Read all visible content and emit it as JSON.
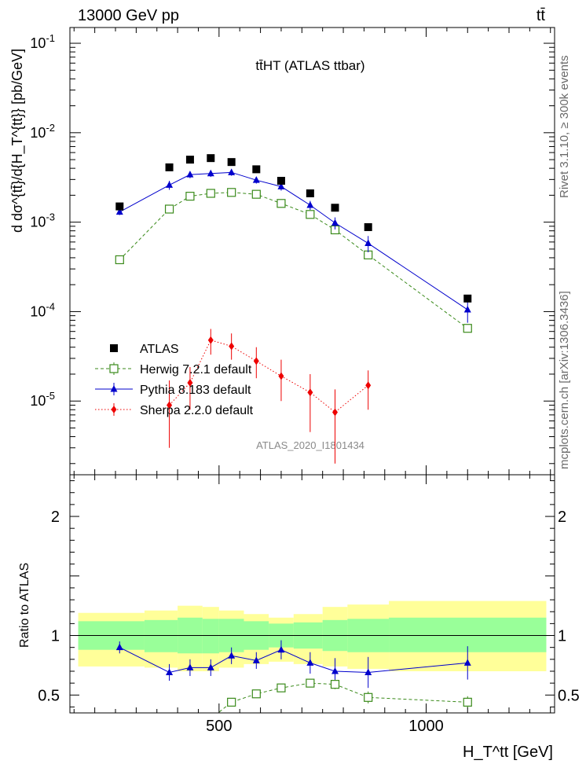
{
  "header": {
    "energy": "13000 GeV pp",
    "process": "tt̄"
  },
  "sidebar": {
    "rivet": "Rivet 3.1.10, ≥ 300k events",
    "mcplots": "mcplots.cern.ch [arXiv:1306.3436]"
  },
  "chart_data": [
    {
      "id": "main",
      "type": "scatter",
      "title": "tt̄HT (ATLAS ttbar)",
      "watermark": "ATLAS_2020_I1801434",
      "ylabel": "d dσ^{tt̄}/d{H_T^{tt}} [pb/GeV]",
      "yscale": "log",
      "ylim": [
        1.5e-06,
        0.15
      ],
      "xlim": [
        140,
        1310
      ],
      "ytick_labels": [
        "10^-5",
        "10^-4",
        "10^-3",
        "10^-2",
        "10^-1"
      ],
      "legend_position": "lower-left",
      "series": [
        {
          "name": "ATLAS",
          "marker": "filled-square",
          "color": "#000000",
          "x": [
            260,
            380,
            430,
            480,
            530,
            590,
            650,
            720,
            780,
            860,
            1100
          ],
          "y": [
            0.0015,
            0.0041,
            0.005,
            0.0052,
            0.0047,
            0.0039,
            0.0029,
            0.0021,
            0.00145,
            0.00088,
            0.00014
          ]
        },
        {
          "name": "Herwig 7.2.1 default",
          "marker": "open-square",
          "line": "dashed",
          "color": "#3a8a1a",
          "x": [
            260,
            380,
            430,
            480,
            530,
            590,
            650,
            720,
            780,
            860,
            1100
          ],
          "y": [
            0.00038,
            0.0014,
            0.00195,
            0.0021,
            0.00215,
            0.00205,
            0.00162,
            0.00122,
            0.00082,
            0.00043,
            6.5e-05
          ]
        },
        {
          "name": "Pythia 8.183 default",
          "marker": "filled-triangle",
          "line": "solid",
          "color": "#0000cc",
          "x": [
            260,
            380,
            430,
            480,
            530,
            590,
            650,
            720,
            780,
            860,
            1100
          ],
          "y": [
            0.0013,
            0.0026,
            0.0034,
            0.0035,
            0.0036,
            0.00295,
            0.0025,
            0.00155,
            0.00098,
            0.00058,
            0.000105
          ],
          "err": [
            0.0001,
            0.0003,
            0.0003,
            0.0003,
            0.0003,
            0.00025,
            0.00025,
            0.00018,
            0.00015,
            0.00012,
            3e-05
          ]
        },
        {
          "name": "Sherpa 2.2.0 default",
          "marker": "filled-diamond",
          "line": "dotted",
          "color": "#ee0000",
          "x": [
            380,
            430,
            480,
            530,
            590,
            650,
            720,
            780,
            860
          ],
          "y": [
            9e-06,
            1.6e-05,
            4.8e-05,
            4.1e-05,
            2.8e-05,
            1.9e-05,
            1.25e-05,
            7.5e-06,
            1.5e-05
          ],
          "err_lo": [
            6e-06,
            8e-06,
            1.5e-05,
            1.2e-05,
            1e-05,
            9e-06,
            8e-06,
            5.5e-06,
            7e-06
          ],
          "err_hi": [
            8e-06,
            8e-06,
            1.6e-05,
            1.6e-05,
            1.2e-05,
            1e-05,
            7.5e-06,
            6e-06,
            7e-06
          ]
        }
      ]
    },
    {
      "id": "ratio",
      "type": "line",
      "ylabel": "Ratio to ATLAS",
      "xlabel": "H_T^tt [GeV]",
      "xlim": [
        140,
        1310
      ],
      "ylim": [
        0.35,
        2.35
      ],
      "yticks": [
        0.5,
        1,
        2
      ],
      "ytick_labels": [
        "0.5",
        "1",
        "2"
      ],
      "xticks": [
        500,
        1000
      ],
      "xtick_labels": [
        "500",
        "1000"
      ],
      "band_edges": [
        160,
        320,
        400,
        460,
        500,
        560,
        620,
        680,
        750,
        810,
        910,
        1290
      ],
      "band_green": [
        {
          "lo": 0.88,
          "hi": 1.12
        },
        {
          "lo": 0.86,
          "hi": 1.13
        },
        {
          "lo": 0.85,
          "hi": 1.15
        },
        {
          "lo": 0.85,
          "hi": 1.14
        },
        {
          "lo": 0.86,
          "hi": 1.14
        },
        {
          "lo": 0.88,
          "hi": 1.12
        },
        {
          "lo": 0.9,
          "hi": 1.1
        },
        {
          "lo": 0.89,
          "hi": 1.11
        },
        {
          "lo": 0.87,
          "hi": 1.13
        },
        {
          "lo": 0.86,
          "hi": 1.14
        },
        {
          "lo": 0.86,
          "hi": 1.15
        }
      ],
      "band_yellow": [
        {
          "lo": 0.74,
          "hi": 1.19
        },
        {
          "lo": 0.73,
          "hi": 1.21
        },
        {
          "lo": 0.7,
          "hi": 1.25
        },
        {
          "lo": 0.7,
          "hi": 1.24
        },
        {
          "lo": 0.73,
          "hi": 1.21
        },
        {
          "lo": 0.76,
          "hi": 1.18
        },
        {
          "lo": 0.78,
          "hi": 1.15
        },
        {
          "lo": 0.76,
          "hi": 1.18
        },
        {
          "lo": 0.74,
          "hi": 1.24
        },
        {
          "lo": 0.72,
          "hi": 1.26
        },
        {
          "lo": 0.7,
          "hi": 1.29
        }
      ],
      "series": [
        {
          "name": "Pythia 8.183 default",
          "marker": "filled-triangle",
          "line": "solid",
          "color": "#0000cc",
          "x": [
            260,
            380,
            430,
            480,
            530,
            590,
            650,
            720,
            780,
            860,
            1100
          ],
          "y": [
            0.9,
            0.69,
            0.73,
            0.73,
            0.83,
            0.79,
            0.88,
            0.77,
            0.7,
            0.69,
            0.77
          ],
          "err": [
            0.05,
            0.07,
            0.07,
            0.07,
            0.07,
            0.07,
            0.08,
            0.09,
            0.11,
            0.13,
            0.14
          ]
        },
        {
          "name": "Herwig 7.2.1 default",
          "marker": "open-square",
          "line": "dashed",
          "color": "#3a8a1a",
          "x": [
            530,
            590,
            650,
            720,
            780,
            860,
            1100
          ],
          "y": [
            0.44,
            0.51,
            0.56,
            0.6,
            0.59,
            0.48,
            0.44
          ],
          "err": [
            0.01,
            0.01,
            0.01,
            0.02,
            0.04,
            0.05,
            0.05
          ]
        }
      ]
    }
  ]
}
